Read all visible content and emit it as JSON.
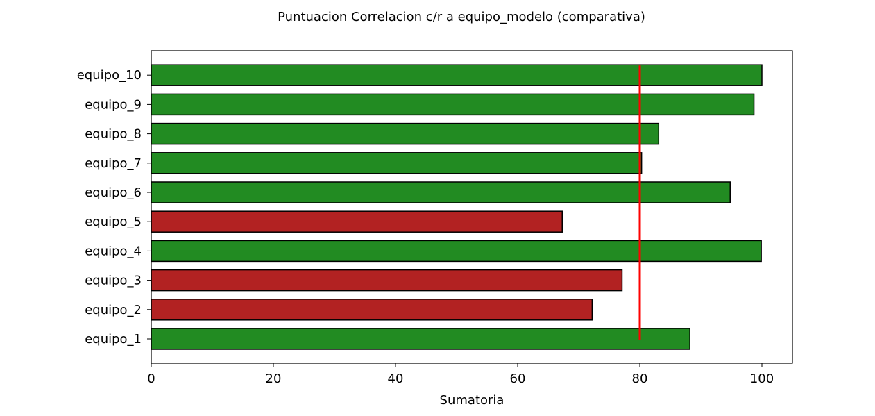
{
  "chart_data": {
    "type": "bar",
    "orientation": "horizontal",
    "title": "Puntuacion Correlacion c/r a equipo_modelo (comparativa)",
    "xlabel": "Sumatoria",
    "ylabel": "",
    "xlim": [
      0,
      105
    ],
    "x_ticks": [
      0,
      20,
      40,
      60,
      80,
      100
    ],
    "categories": [
      "equipo_1",
      "equipo_2",
      "equipo_3",
      "equipo_4",
      "equipo_5",
      "equipo_6",
      "equipo_7",
      "equipo_8",
      "equipo_9",
      "equipo_10"
    ],
    "values": [
      88.2,
      72.2,
      77.1,
      99.9,
      67.3,
      94.8,
      80.3,
      83.1,
      98.7,
      100.0
    ],
    "threshold": 80,
    "colors": {
      "above_threshold": "#228b22",
      "below_threshold": "#b22222",
      "threshold_line": "#ff0000",
      "bar_edge": "#000000"
    },
    "grid": false,
    "legend": "none"
  }
}
